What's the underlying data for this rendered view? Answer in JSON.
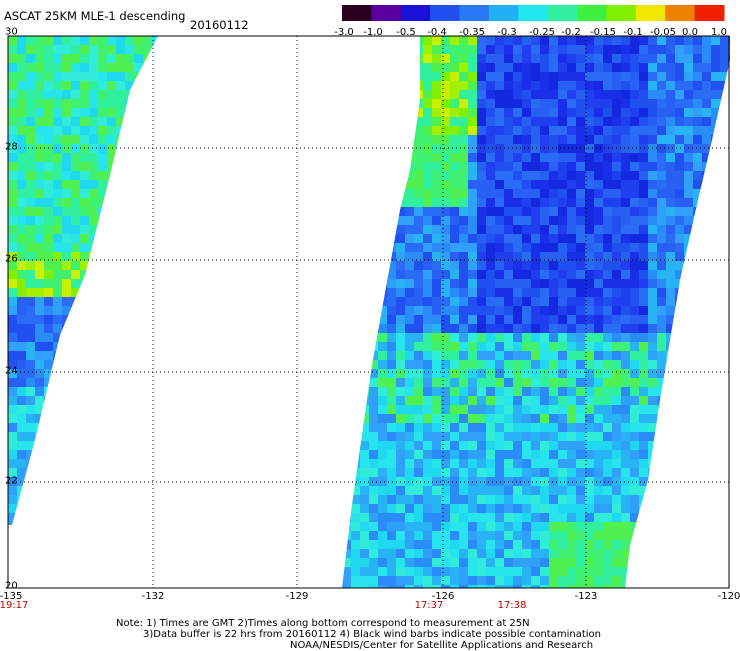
{
  "header": {
    "title": "ASCAT 25KM MLE-1 descending",
    "date": "20160112"
  },
  "colorbar": {
    "ticks": [
      "-3.0",
      "-1.0",
      "-0.5",
      "-0.4",
      "-0.35",
      "-0.3",
      "-0.25",
      "-0.2",
      "-0.15",
      "-0.1",
      "-0.05",
      "0.0",
      "1.0"
    ],
    "colors": [
      "#2a0020",
      "#5a00a0",
      "#1a10d8",
      "#2050f0",
      "#2a7af8",
      "#20b0f8",
      "#20e8f0",
      "#30f0a0",
      "#40f040",
      "#80f000",
      "#f0e800",
      "#f08000",
      "#f02000"
    ]
  },
  "axes": {
    "lon_labels": [
      "-135",
      "-132",
      "-129",
      "-126",
      "-123",
      "-120"
    ],
    "lat_labels": [
      "30",
      "28",
      "26",
      "24",
      "22",
      "20"
    ]
  },
  "times": [
    "19:17",
    "17:37",
    "17:38"
  ],
  "notes": {
    "line1": "Note: 1) Times are GMT 2)Times along bottom correspond to measurement at 25N",
    "line2": "3)Data buffer is 22 hrs from 20160112 4) Black wind barbs indicate possible contamination",
    "line3": "NOAA/NESDIS/Center for Satellite Applications and Research"
  }
}
